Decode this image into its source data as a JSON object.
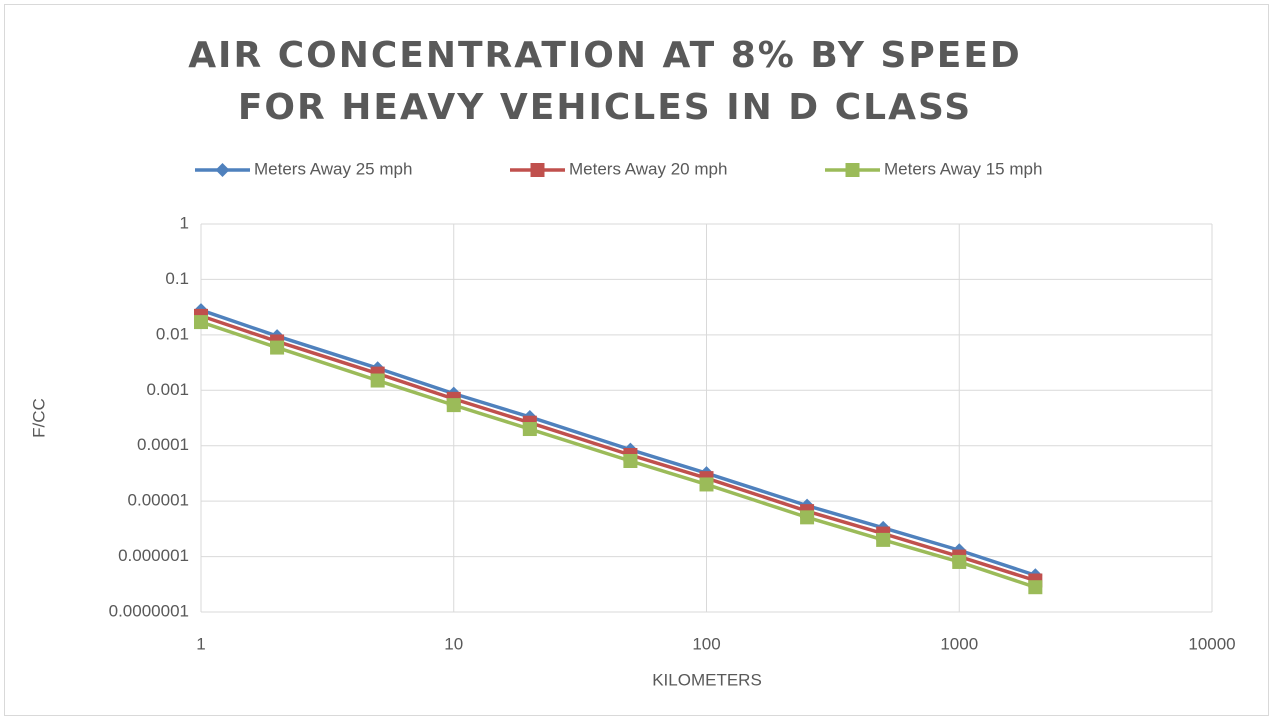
{
  "chart_data": {
    "type": "line",
    "title": "AIR CONCENTRATION AT 8% BY SPEED FOR HEAVY VEHICLES IN D CLASS",
    "x_label": "KILOMETERS",
    "y_label": "F/CC",
    "x": [
      1,
      2,
      5,
      10,
      20,
      50,
      100,
      250,
      500,
      1000,
      2000
    ],
    "series": [
      {
        "name": "Meters Away 25 mph",
        "color": "#4f81bd",
        "marker": "diamond",
        "values": [
          0.028,
          0.0095,
          0.0025,
          0.00087,
          0.00033,
          8.5e-05,
          3.2e-05,
          8.3e-06,
          3.3e-06,
          1.3e-06,
          4.6e-07
        ]
      },
      {
        "name": "Meters Away 20 mph",
        "color": "#c0504d",
        "marker": "square",
        "values": [
          0.022,
          0.0076,
          0.002,
          0.0007,
          0.00026,
          6.8e-05,
          2.6e-05,
          6.6e-06,
          2.6e-06,
          1e-06,
          3.7e-07
        ]
      },
      {
        "name": "Meters Away 15 mph",
        "color": "#9bbb59",
        "marker": "square",
        "values": [
          0.017,
          0.0059,
          0.0015,
          0.00054,
          0.0002,
          5.3e-05,
          2e-05,
          5.1e-06,
          2e-06,
          8e-07,
          2.8e-07
        ]
      }
    ],
    "xscale": "log",
    "yscale": "log",
    "xlim": [
      1,
      10000
    ],
    "ylim": [
      1e-07,
      1
    ],
    "xticks": [
      1,
      10,
      100,
      1000,
      10000
    ],
    "yticks": [
      1,
      0.1,
      0.01,
      0.001,
      0.0001,
      1e-05,
      1e-06,
      {
        "value": 1e-07,
        "label": "0.0000001"
      }
    ],
    "grid": true,
    "legend": "top"
  }
}
